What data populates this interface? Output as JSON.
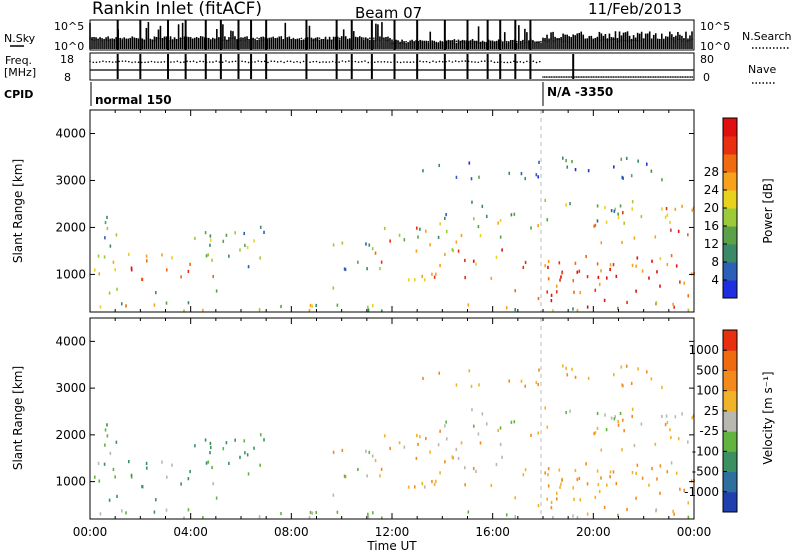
{
  "header": {
    "station": "Rankin Inlet (fitACF)",
    "beam": "Beam 07",
    "date": "11/Feb/2013"
  },
  "status_panel": {
    "nsky_label": "N.Sky",
    "nsky_ticks": [
      "10^5",
      "10^0"
    ],
    "nsearch_label": "N.Search",
    "nsearch_ticks": [
      "10^5",
      "10^0"
    ],
    "freq_label": "Freq.",
    "freq_unit": "[MHz]",
    "freq_ticks": [
      "18",
      "8"
    ],
    "nave_label": "Nave",
    "nave_ticks": [
      "80",
      "0"
    ],
    "cpid_label": "CPID",
    "cpid_segments": [
      {
        "label": "normal 150",
        "start_hour": 0
      },
      {
        "label": "N/A -3350",
        "start_hour": 18
      }
    ]
  },
  "chart_data": [
    {
      "type": "heatmap",
      "name": "power",
      "xlabel": "",
      "ylabel": "Slant Range [km]",
      "xlim": [
        0,
        24
      ],
      "ylim": [
        200,
        4500
      ],
      "yticks": [
        "1000",
        "2000",
        "3000",
        "4000"
      ],
      "colorbar": {
        "label": "Power [dB]",
        "ticks": [
          "4",
          "8",
          "12",
          "16",
          "20",
          "24",
          "28"
        ],
        "colors": [
          "#1f2fe0",
          "#2c5fb8",
          "#3a8a6a",
          "#5aa14a",
          "#9ccb3a",
          "#e9d21e",
          "#f7a21a",
          "#f06a10",
          "#e83010",
          "#e01010"
        ]
      }
    },
    {
      "type": "heatmap",
      "name": "velocity",
      "xlabel": "Time UT",
      "ylabel": "Slant Range [km]",
      "xlim": [
        0,
        24
      ],
      "ylim": [
        200,
        4500
      ],
      "xticks": [
        "00:00",
        "04:00",
        "08:00",
        "12:00",
        "16:00",
        "20:00",
        "00:00"
      ],
      "yticks": [
        "1000",
        "2000",
        "3000",
        "4000"
      ],
      "colorbar": {
        "label": "Velocity [m s⁻¹]",
        "ticks": [
          "1000",
          "500",
          "100",
          "25",
          "-25",
          "-100",
          "-500",
          "-1000"
        ],
        "colors": [
          "#2040b0",
          "#2f6fa0",
          "#3c8f60",
          "#63b340",
          "#b8b8b0",
          "#f1b32a",
          "#f58a1c",
          "#f06a10",
          "#e83010"
        ]
      }
    }
  ]
}
